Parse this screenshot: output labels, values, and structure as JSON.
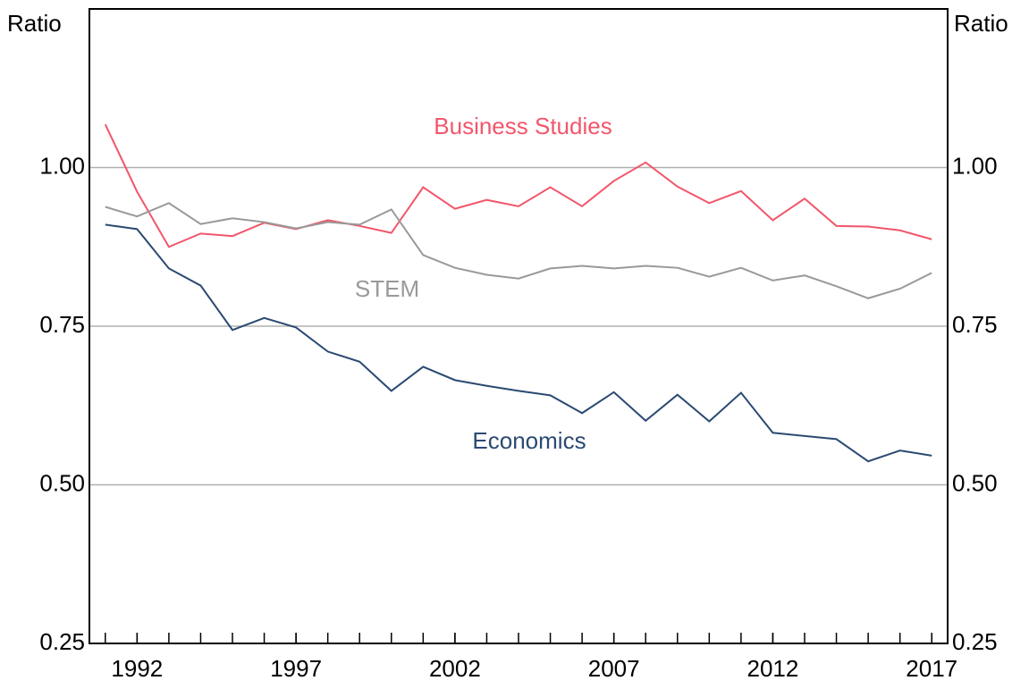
{
  "chart_data": {
    "type": "line",
    "y_label": "Ratio",
    "y2_label": "Ratio",
    "x": [
      1991,
      1992,
      1993,
      1994,
      1995,
      1996,
      1997,
      1998,
      1999,
      2000,
      2001,
      2002,
      2003,
      2004,
      2005,
      2006,
      2007,
      2008,
      2009,
      2010,
      2011,
      2012,
      2013,
      2014,
      2015,
      2016,
      2017
    ],
    "series": [
      {
        "name": "Business Studies",
        "color": "#f2566b",
        "values": [
          1.068,
          0.962,
          0.875,
          0.896,
          0.892,
          0.913,
          0.903,
          0.917,
          0.908,
          0.897,
          0.969,
          0.935,
          0.949,
          0.939,
          0.969,
          0.939,
          0.979,
          1.008,
          0.97,
          0.944,
          0.963,
          0.917,
          0.951,
          0.908,
          0.907,
          0.901,
          0.887
        ]
      },
      {
        "name": "STEM",
        "color": "#999999",
        "values": [
          0.938,
          0.923,
          0.944,
          0.911,
          0.92,
          0.914,
          0.904,
          0.914,
          0.91,
          0.934,
          0.862,
          0.842,
          0.831,
          0.825,
          0.841,
          0.845,
          0.841,
          0.845,
          0.842,
          0.828,
          0.842,
          0.822,
          0.83,
          0.813,
          0.794,
          0.809,
          0.834
        ]
      },
      {
        "name": "Economics",
        "color": "#2b4a72",
        "values": [
          0.91,
          0.903,
          0.841,
          0.814,
          0.744,
          0.763,
          0.748,
          0.71,
          0.694,
          0.648,
          0.686,
          0.665,
          0.656,
          0.648,
          0.641,
          0.613,
          0.646,
          0.601,
          0.642,
          0.6,
          0.645,
          0.582,
          0.577,
          0.572,
          0.537,
          0.554,
          0.546
        ]
      }
    ],
    "xlim": [
      1990.5,
      2017.5
    ],
    "xticks": [
      1992,
      1997,
      2002,
      2007,
      2012,
      2017
    ],
    "xminor_ticks": [
      1991,
      1992,
      1993,
      1994,
      1995,
      1996,
      1997,
      1998,
      1999,
      2000,
      2001,
      2002,
      2003,
      2004,
      2005,
      2006,
      2007,
      2008,
      2009,
      2010,
      2011,
      2012,
      2013,
      2014,
      2015,
      2016,
      2017
    ],
    "ylim": [
      0.25,
      1.25
    ],
    "yticks": [
      {
        "value": 0.25,
        "label": "0.25"
      },
      {
        "value": 0.5,
        "label": "0.50"
      },
      {
        "value": 0.75,
        "label": "0.75"
      },
      {
        "value": 1.0,
        "label": "1.00"
      }
    ],
    "y2lim": [
      0.25,
      1.25
    ],
    "y2ticks": [
      {
        "value": 0.25,
        "label": "0.25"
      },
      {
        "value": 0.5,
        "label": "0.50"
      },
      {
        "value": 0.75,
        "label": "0.75"
      },
      {
        "value": 1.0,
        "label": "1.00"
      }
    ],
    "grid": true
  }
}
